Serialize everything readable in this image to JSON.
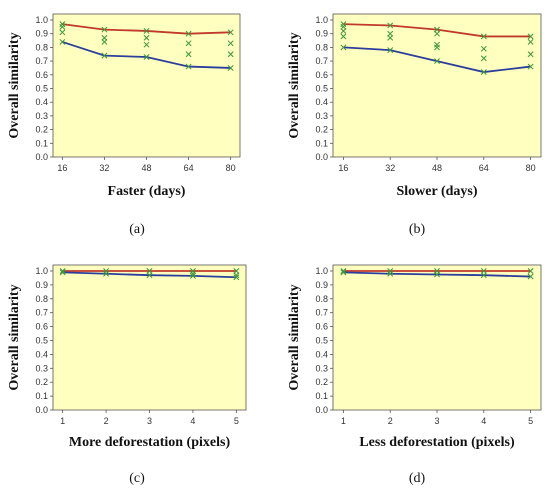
{
  "colors": {
    "plot_background": "#ffffc0",
    "upper_line": "#c0392b",
    "lower_line": "#2c3e9c",
    "markers": "#3a9a3a"
  },
  "chart_data": [
    {
      "panel": "(a)",
      "type": "line",
      "xlabel": "Faster (days)",
      "ylabel": "Overall similarity",
      "x": [
        16,
        32,
        48,
        64,
        80
      ],
      "xticks": [
        "16",
        "32",
        "48",
        "64",
        "80"
      ],
      "ylim": [
        0,
        1
      ],
      "yticks": [
        "0.0",
        "0.1",
        "0.2",
        "0.3",
        "0.4",
        "0.5",
        "0.6",
        "0.7",
        "0.8",
        "0.9",
        "1.0"
      ],
      "series": [
        {
          "role": "upper",
          "values": [
            0.97,
            0.93,
            0.92,
            0.9,
            0.91
          ]
        },
        {
          "role": "lower",
          "values": [
            0.84,
            0.74,
            0.73,
            0.66,
            0.65
          ]
        }
      ],
      "points": [
        [
          16,
          0.97
        ],
        [
          16,
          0.95
        ],
        [
          16,
          0.91
        ],
        [
          16,
          0.84
        ],
        [
          32,
          0.93
        ],
        [
          32,
          0.87
        ],
        [
          32,
          0.84
        ],
        [
          32,
          0.74
        ],
        [
          48,
          0.92
        ],
        [
          48,
          0.87
        ],
        [
          48,
          0.82
        ],
        [
          48,
          0.73
        ],
        [
          64,
          0.9
        ],
        [
          64,
          0.83
        ],
        [
          64,
          0.75
        ],
        [
          64,
          0.66
        ],
        [
          80,
          0.91
        ],
        [
          80,
          0.83
        ],
        [
          80,
          0.75
        ],
        [
          80,
          0.65
        ]
      ],
      "grid": false
    },
    {
      "panel": "(b)",
      "type": "line",
      "xlabel": "Slower (days)",
      "ylabel": "Overall similarity",
      "x": [
        16,
        32,
        48,
        64,
        80
      ],
      "xticks": [
        "16",
        "32",
        "48",
        "64",
        "80"
      ],
      "ylim": [
        0,
        1
      ],
      "yticks": [
        "0.0",
        "0.1",
        "0.2",
        "0.3",
        "0.4",
        "0.5",
        "0.6",
        "0.7",
        "0.8",
        "0.9",
        "1.0"
      ],
      "series": [
        {
          "role": "upper",
          "values": [
            0.97,
            0.96,
            0.93,
            0.88,
            0.88
          ]
        },
        {
          "role": "lower",
          "values": [
            0.8,
            0.78,
            0.7,
            0.62,
            0.66
          ]
        }
      ],
      "points": [
        [
          16,
          0.97
        ],
        [
          16,
          0.95
        ],
        [
          16,
          0.92
        ],
        [
          16,
          0.88
        ],
        [
          16,
          0.8
        ],
        [
          32,
          0.96
        ],
        [
          32,
          0.9
        ],
        [
          32,
          0.87
        ],
        [
          32,
          0.78
        ],
        [
          48,
          0.93
        ],
        [
          48,
          0.9
        ],
        [
          48,
          0.82
        ],
        [
          48,
          0.8
        ],
        [
          48,
          0.7
        ],
        [
          64,
          0.88
        ],
        [
          64,
          0.79
        ],
        [
          64,
          0.72
        ],
        [
          64,
          0.62
        ],
        [
          80,
          0.88
        ],
        [
          80,
          0.84
        ],
        [
          80,
          0.75
        ],
        [
          80,
          0.66
        ]
      ],
      "grid": false
    },
    {
      "panel": "(c)",
      "type": "line",
      "xlabel": "More deforestation (pixels)",
      "ylabel": "Overall similarity",
      "x": [
        1,
        2,
        3,
        4,
        5
      ],
      "xticks": [
        "1",
        "2",
        "3",
        "4",
        "5"
      ],
      "ylim": [
        0,
        1
      ],
      "yticks": [
        "0.0",
        "0.1",
        "0.2",
        "0.3",
        "0.4",
        "0.5",
        "0.6",
        "0.7",
        "0.8",
        "0.9",
        "1.0"
      ],
      "series": [
        {
          "role": "upper",
          "values": [
            1.0,
            1.0,
            1.0,
            1.0,
            1.0
          ]
        },
        {
          "role": "lower",
          "values": [
            0.99,
            0.98,
            0.97,
            0.965,
            0.955
          ]
        }
      ],
      "points": [
        [
          1,
          1.0
        ],
        [
          1,
          0.99
        ],
        [
          2,
          1.0
        ],
        [
          2,
          0.98
        ],
        [
          3,
          1.0
        ],
        [
          3,
          0.97
        ],
        [
          4,
          1.0
        ],
        [
          4,
          0.98
        ],
        [
          4,
          0.965
        ],
        [
          5,
          1.0
        ],
        [
          5,
          0.97
        ],
        [
          5,
          0.955
        ]
      ],
      "grid": false
    },
    {
      "panel": "(d)",
      "type": "line",
      "xlabel": "Less deforestation (pixels)",
      "ylabel": "Overall similarity",
      "x": [
        1,
        2,
        3,
        4,
        5
      ],
      "xticks": [
        "1",
        "2",
        "3",
        "4",
        "5"
      ],
      "ylim": [
        0,
        1
      ],
      "yticks": [
        "0.0",
        "0.1",
        "0.2",
        "0.3",
        "0.4",
        "0.5",
        "0.6",
        "0.7",
        "0.8",
        "0.9",
        "1.0"
      ],
      "series": [
        {
          "role": "upper",
          "values": [
            1.0,
            1.0,
            1.0,
            1.0,
            1.0
          ]
        },
        {
          "role": "lower",
          "values": [
            0.99,
            0.98,
            0.975,
            0.97,
            0.96
          ]
        }
      ],
      "points": [
        [
          1,
          1.0
        ],
        [
          1,
          0.99
        ],
        [
          2,
          1.0
        ],
        [
          2,
          0.98
        ],
        [
          3,
          1.0
        ],
        [
          3,
          0.975
        ],
        [
          4,
          1.0
        ],
        [
          4,
          0.97
        ],
        [
          5,
          1.0
        ],
        [
          5,
          0.96
        ]
      ],
      "grid": false
    }
  ]
}
